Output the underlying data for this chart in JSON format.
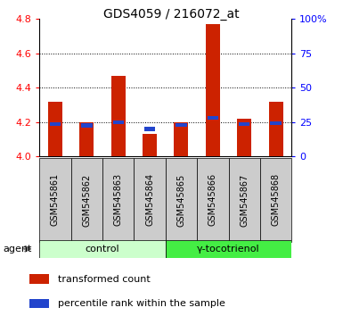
{
  "title": "GDS4059 / 216072_at",
  "samples": [
    "GSM545861",
    "GSM545862",
    "GSM545863",
    "GSM545864",
    "GSM545865",
    "GSM545866",
    "GSM545867",
    "GSM545868"
  ],
  "transformed_count": [
    4.32,
    4.2,
    4.47,
    4.13,
    4.2,
    4.77,
    4.22,
    4.32
  ],
  "percentile_rank": [
    4.19,
    4.18,
    4.2,
    4.16,
    4.185,
    4.225,
    4.19,
    4.195
  ],
  "ylim": [
    4.0,
    4.8
  ],
  "yticks": [
    4.0,
    4.2,
    4.4,
    4.6,
    4.8
  ],
  "right_yticks_pct": [
    0,
    25,
    50,
    75,
    100
  ],
  "bar_color_red": "#cc2200",
  "bar_color_blue": "#2244cc",
  "bar_width": 0.45,
  "blue_bar_width": 0.35,
  "blue_bar_height": 0.022,
  "control_color_light": "#ccffcc",
  "treatment_color_dark": "#44ee44",
  "label_bg_color": "#cccccc",
  "legend_red_label": "transformed count",
  "legend_blue_label": "percentile rank within the sample",
  "agent_label": "agent",
  "control_label": "control",
  "treatment_label": "γ-tocotrienol",
  "n_control": 4,
  "n_treatment": 4
}
